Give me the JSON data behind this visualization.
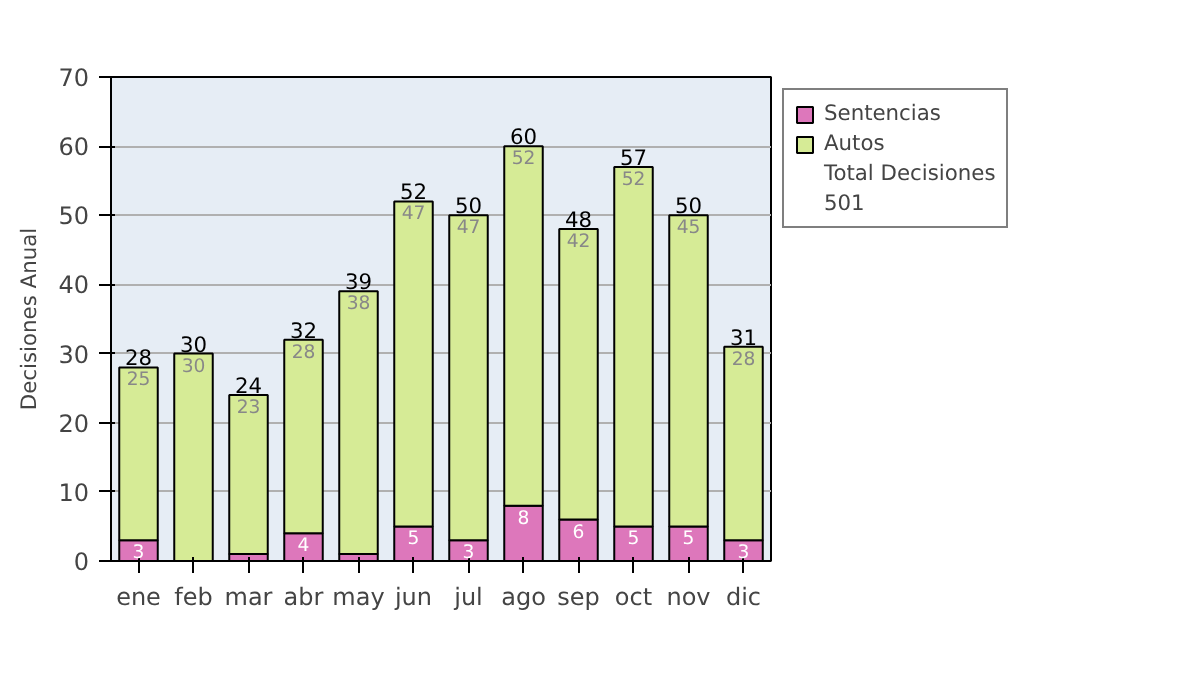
{
  "chart_data": {
    "type": "bar",
    "stacked": true,
    "ylabel": "Decisiones Anual",
    "categories": [
      "ene",
      "feb",
      "mar",
      "abr",
      "may",
      "jun",
      "jul",
      "ago",
      "sep",
      "oct",
      "nov",
      "dic"
    ],
    "series": [
      {
        "name": "Sentencias",
        "color": "#dd77bb",
        "values": [
          3,
          0,
          1,
          4,
          1,
          5,
          3,
          8,
          6,
          5,
          5,
          3
        ],
        "value_labels": [
          "3",
          null,
          null,
          "4",
          null,
          "5",
          "3",
          "8",
          "6",
          "5",
          "5",
          "3"
        ]
      },
      {
        "name": "Autos",
        "color": "#d6eb96",
        "values": [
          25,
          30,
          23,
          28,
          38,
          47,
          47,
          52,
          42,
          52,
          45,
          28
        ],
        "value_labels": [
          "25",
          "30",
          "23",
          "28",
          "38",
          "47",
          "47",
          "52",
          "42",
          "52",
          "45",
          "28"
        ]
      }
    ],
    "totals": [
      "28",
      "30",
      "24",
      "32",
      "39",
      "52",
      "50",
      "60",
      "48",
      "57",
      "50",
      "31"
    ],
    "ylim": [
      0,
      70
    ],
    "yticks": [
      0,
      10,
      20,
      30,
      40,
      50,
      60,
      70
    ],
    "grid": "y",
    "legend": "right",
    "annotations": [
      "Total Decisiones",
      "501"
    ]
  }
}
